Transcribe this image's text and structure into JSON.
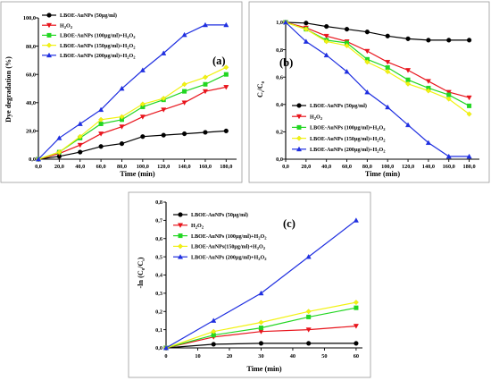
{
  "colors": {
    "LBOE-AuNPs (50µg/ml)": "#000000",
    "H2O2": "#e8141c",
    "LBOE-AuNPs (100µg/ml)+H2O2": "#22d622",
    "LBOE-AuNPs (150µg/ml)+H2O2": "#f2f212",
    "LBOE-AuNPs (200µg/ml)+H2O2": "#1f2fe0"
  },
  "chart_data": [
    {
      "type": "line",
      "panel_label": "(a)",
      "xlabel": "Time (min)",
      "ylabel": "Dye degradation (%)",
      "xlim": [
        0,
        190
      ],
      "ylim": [
        0,
        100
      ],
      "xticks": [
        "0,0",
        "20,0",
        "40,0",
        "60,0",
        "80,0",
        "100,0",
        "120,0",
        "140,0",
        "160,0",
        "180,0"
      ],
      "yticks": [
        "0,0",
        "20,0",
        "40,0",
        "60,0",
        "80,0",
        "100,0"
      ],
      "legend_position": "top-left",
      "x": [
        0,
        20,
        40,
        60,
        80,
        100,
        120,
        140,
        160,
        180
      ],
      "series": [
        {
          "name": "LBOE-AuNPs (50µg/ml)",
          "marker": "circle",
          "values": [
            0,
            2,
            5,
            9,
            11,
            16,
            17,
            18,
            19,
            20
          ]
        },
        {
          "name": "H2O2",
          "marker": "triangle-down",
          "values": [
            0,
            4,
            10,
            18,
            23,
            30,
            35,
            40,
            48,
            51
          ]
        },
        {
          "name": "LBOE-AuNPs (100µg/ml)+H2O2",
          "marker": "square",
          "values": [
            0,
            5,
            15,
            25,
            28,
            37,
            42,
            48,
            53,
            60
          ]
        },
        {
          "name": "LBOE-AuNPs (150µg/ml)+H2O2",
          "marker": "diamond",
          "values": [
            0,
            5,
            16,
            28,
            30,
            39,
            43,
            53,
            58,
            65
          ]
        },
        {
          "name": "LBOE-AuNPs (200µg/ml)+H2O2",
          "marker": "triangle-up",
          "values": [
            0,
            15,
            25,
            35,
            50,
            63,
            75,
            88,
            95,
            95
          ]
        }
      ]
    },
    {
      "type": "line",
      "panel_label": "(b)",
      "xlabel": "Time (min)",
      "ylabel": "Ct/C0",
      "xlim": [
        0,
        190
      ],
      "ylim": [
        0,
        1.0
      ],
      "xticks": [
        "0,0",
        "20,0",
        "40,0",
        "60,0",
        "80,0",
        "100,0",
        "120,0",
        "140,0",
        "160,0",
        "180,0"
      ],
      "yticks": [
        "0,0",
        "0,2",
        "0,4",
        "0,6",
        "0,8",
        "1,0"
      ],
      "legend_position": "bottom-left",
      "x": [
        0,
        20,
        40,
        60,
        80,
        100,
        120,
        140,
        160,
        180
      ],
      "series": [
        {
          "name": "LBOE-AuNPs (50µg/ml)",
          "marker": "circle",
          "values": [
            1.0,
            0.995,
            0.97,
            0.95,
            0.93,
            0.9,
            0.88,
            0.87,
            0.87,
            0.87
          ]
        },
        {
          "name": "H2O2",
          "marker": "triangle-down",
          "values": [
            1.0,
            0.96,
            0.9,
            0.86,
            0.79,
            0.71,
            0.65,
            0.57,
            0.49,
            0.45
          ]
        },
        {
          "name": "LBOE-AuNPs (100µg/ml)+H2O2",
          "marker": "square",
          "values": [
            1.0,
            0.95,
            0.87,
            0.85,
            0.73,
            0.67,
            0.58,
            0.52,
            0.47,
            0.39
          ]
        },
        {
          "name": "LBOE-AuNPs (150µg/ml)+H2O2",
          "marker": "diamond",
          "values": [
            1.0,
            0.95,
            0.86,
            0.83,
            0.71,
            0.64,
            0.55,
            0.5,
            0.44,
            0.33
          ]
        },
        {
          "name": "LBOE-AuNPs (200µg/ml)+H2O2",
          "marker": "triangle-up",
          "values": [
            1.0,
            0.86,
            0.76,
            0.64,
            0.49,
            0.38,
            0.25,
            0.12,
            0.02,
            0.02
          ]
        }
      ]
    },
    {
      "type": "line",
      "panel_label": "(c)",
      "xlabel": "Time (min)",
      "ylabel": "-ln (C0/Ct)",
      "xlim": [
        0,
        62
      ],
      "ylim": [
        0,
        0.8
      ],
      "xticks": [
        "0",
        "10",
        "20",
        "30",
        "40",
        "50",
        "60"
      ],
      "yticks": [
        "0,0",
        "0,1",
        "0,2",
        "0,3",
        "0,4",
        "0,5",
        "0,6",
        "0,7",
        "0,8"
      ],
      "legend_position": "top-left",
      "x": [
        0,
        15,
        30,
        45,
        60
      ],
      "series": [
        {
          "name": "LBOE-AuNPs (50µg/ml)",
          "marker": "circle",
          "values": [
            0,
            0.02,
            0.025,
            0.025,
            0.025
          ]
        },
        {
          "name": "H2O2",
          "marker": "triangle-down",
          "values": [
            0,
            0.06,
            0.09,
            0.1,
            0.12
          ]
        },
        {
          "name": "LBOE-AuNPs (100µg/ml)+H2O2",
          "marker": "square",
          "values": [
            0,
            0.07,
            0.11,
            0.17,
            0.22
          ]
        },
        {
          "name": "LBOE-AuNPs(150µg/ml)+H2O2",
          "marker": "diamond",
          "values": [
            0,
            0.09,
            0.14,
            0.2,
            0.25
          ]
        },
        {
          "name": "LBOE-AuNPs (200µg/ml)+H2O2",
          "marker": "triangle-up",
          "values": [
            0,
            0.15,
            0.3,
            0.5,
            0.7
          ]
        }
      ]
    }
  ]
}
